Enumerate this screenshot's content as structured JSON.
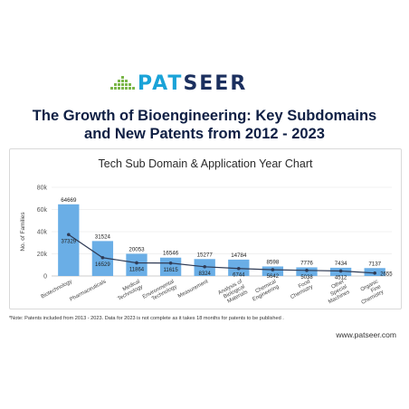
{
  "brand": {
    "part1": "PAT",
    "part2": "SEER",
    "accent": "#1aa3d8",
    "dark": "#1b2f5e",
    "green": "#7ab648"
  },
  "headline": {
    "line1": "The Growth of Bioengineering: Key Subdomains",
    "line2": "and New Patents from 2012 - 2023"
  },
  "chart_data": {
    "type": "bar",
    "title": "Tech Sub Domain & Application Year Chart",
    "xlabel": "",
    "ylabel": "No. of Families",
    "ylim": [
      0,
      80000
    ],
    "yticks": [
      0,
      20000,
      40000,
      60000,
      80000
    ],
    "ytick_labels": [
      "0",
      "20k",
      "40k",
      "60k",
      "80k"
    ],
    "grid": true,
    "categories": [
      [
        "Biotechnology"
      ],
      [
        "Pharmaceuticals"
      ],
      [
        "Medical",
        "Technology"
      ],
      [
        "Environmental",
        "Technology"
      ],
      [
        "Measurement"
      ],
      [
        "Analysis of",
        "Biological",
        "Materials"
      ],
      [
        "Chemical",
        "Engineering"
      ],
      [
        "Food",
        "Chemistry"
      ],
      [
        "Other",
        "Special",
        "Machines"
      ],
      [
        "Organic",
        "Fine",
        "Chemistry"
      ]
    ],
    "series": [
      {
        "type": "bar",
        "color": "#6aaee6",
        "values": [
          64669,
          31524,
          20053,
          16546,
          15277,
          14784,
          8598,
          7776,
          7434,
          7137
        ]
      },
      {
        "type": "line",
        "color": "#2f3b55",
        "values": [
          37329,
          16529,
          11864,
          11615,
          8324,
          6744,
          5642,
          5038,
          4512,
          2655
        ]
      }
    ]
  },
  "note": "*Note: Patents included from 2013 - 2023. Data for 2023 is not complete as it takes 18 months for patents to be published .",
  "website": "www.patseer.com"
}
